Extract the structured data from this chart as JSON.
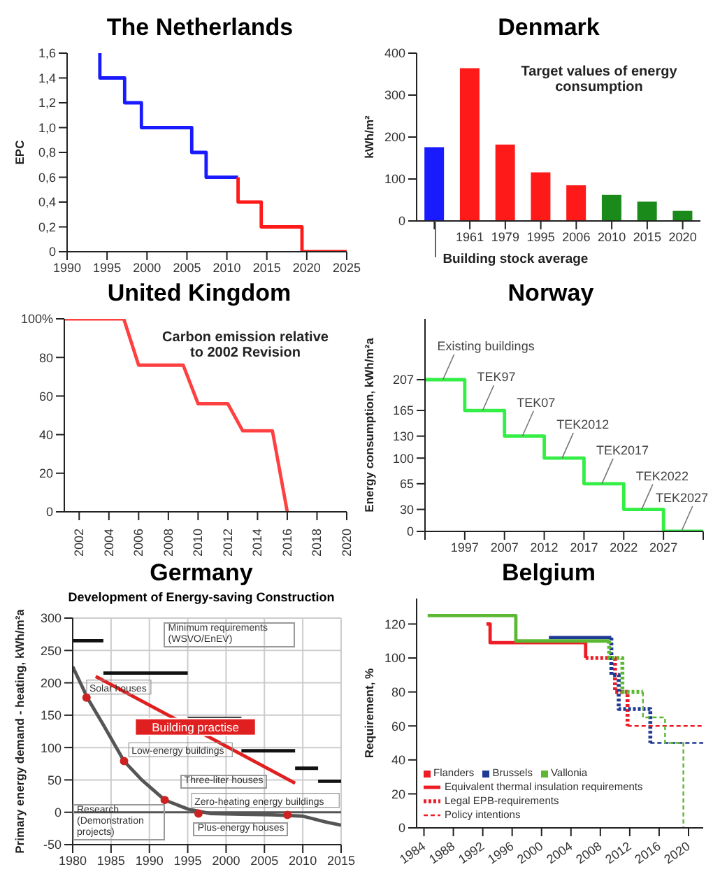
{
  "chart_data": [
    {
      "type": "line",
      "title": "The Netherlands",
      "ylabel": "EPC",
      "xlim": [
        1990,
        2025
      ],
      "xticks": [
        1990,
        1995,
        2000,
        2005,
        2010,
        2015,
        2020,
        2025
      ],
      "ylim": [
        0,
        1.6
      ],
      "yticks": [
        0,
        {
          "value": 0.2,
          "label": "0,2"
        },
        {
          "value": 0.4,
          "label": "0,4"
        },
        {
          "value": 0.6,
          "label": "0,6"
        },
        {
          "value": 0.8,
          "label": "0,8"
        },
        {
          "value": 1.0,
          "label": "1,0"
        },
        {
          "value": 1.2,
          "label": "1,2"
        },
        {
          "value": 1.4,
          "label": "1,4"
        },
        {
          "value": 1.6,
          "label": "1,6"
        }
      ],
      "series": [
        {
          "color": "#1a1aff",
          "x": [
            1994.1,
            1994.1,
            1997.2,
            1997.2,
            1999.3,
            1999.3,
            2005.6,
            2005.6,
            2007.4,
            2007.4,
            2011.4
          ],
          "values": [
            1.6,
            1.4,
            1.4,
            1.2,
            1.2,
            1.0,
            1.0,
            0.8,
            0.8,
            0.6,
            0.6
          ]
        },
        {
          "color": "#ff1a1a",
          "x": [
            2011.4,
            2011.4,
            2014.3,
            2014.3,
            2019.4,
            2019.4,
            2025
          ],
          "values": [
            0.6,
            0.4,
            0.4,
            0.2,
            0.2,
            0,
            0
          ]
        }
      ]
    },
    {
      "type": "bar",
      "title": "Denmark",
      "ylabel": "kWh/m²",
      "categories": [
        null,
        "1961",
        "1979",
        "1995",
        "2006",
        "2010",
        "2015",
        "2020"
      ],
      "values": [
        176,
        364,
        182,
        116,
        85,
        62,
        46,
        24
      ],
      "colors": [
        "#1a1aff",
        "#ff1a1a",
        "#ff1a1a",
        "#ff1a1a",
        "#ff1a1a",
        "#1a8a1a",
        "#1a8a1a",
        "#1a8a1a"
      ],
      "ylim": [
        0,
        400
      ],
      "yticks": [
        0,
        100,
        200,
        300,
        400
      ],
      "annotations": [
        "Target values of energy consumption",
        "Building stock average"
      ]
    },
    {
      "type": "line",
      "title": "United Kingdom",
      "xlim": [
        2001,
        2020
      ],
      "xticks": [
        2002,
        2004,
        2006,
        2008,
        2010,
        2012,
        2014,
        2016,
        2018,
        2020
      ],
      "ylim": [
        0,
        100
      ],
      "yticks": [
        0,
        20,
        40,
        60,
        80,
        {
          "value": 100,
          "label": "100%"
        }
      ],
      "color": "#ff4040",
      "x": [
        2001,
        2005,
        2006,
        2009,
        2010,
        2012,
        2013,
        2015,
        2016
      ],
      "values": [
        100,
        100,
        76,
        76,
        56,
        56,
        42,
        42,
        0
      ],
      "annotations": [
        "Carbon emission relative to 2002 Revision"
      ]
    },
    {
      "type": "step",
      "title": "Norway",
      "ylabel": "Energy consumption, kWh/m²a",
      "categories": [
        null,
        "1997",
        "2007",
        "2012",
        "2017",
        "2022",
        "2027",
        null
      ],
      "values": [
        207,
        165,
        130,
        100,
        65,
        30,
        0,
        0
      ],
      "color": "#33ee44",
      "ylim": [
        0,
        290
      ],
      "yticks": [
        0,
        30,
        65,
        100,
        130,
        165,
        207
      ],
      "annotations": [
        "Existing buildings",
        "TEK97",
        "TEK07",
        "TEK2012",
        "TEK2017",
        "TEK2022",
        "TEK2027"
      ]
    },
    {
      "type": "line",
      "title": "Germany",
      "subtitle": "Development of Energy-saving Construction",
      "ylabel": "Primary energy demand - heating, kWh/m²a",
      "xlim": [
        1980,
        2015
      ],
      "xticks": [
        1980,
        1985,
        1990,
        1995,
        2000,
        2005,
        2010,
        2015
      ],
      "ylim": [
        -50,
        300
      ],
      "yticks": [
        -50,
        0,
        50,
        100,
        150,
        200,
        250,
        300
      ],
      "grid": true,
      "ref_lines": [
        {
          "axis": "y",
          "value": 0,
          "color": "#555555"
        }
      ],
      "series": [
        {
          "color": "#111111",
          "x": [
            1980,
            1984
          ],
          "values": [
            265,
            265
          ]
        },
        {
          "color": "#111111",
          "x": [
            1984,
            1995
          ],
          "values": [
            215,
            215
          ]
        },
        {
          "color": "#111111",
          "x": [
            1995,
            2002
          ],
          "values": [
            145,
            145
          ]
        },
        {
          "color": "#111111",
          "x": [
            2002,
            2009
          ],
          "values": [
            95,
            95
          ]
        },
        {
          "color": "#111111",
          "x": [
            2009,
            2012
          ],
          "values": [
            68,
            68
          ]
        },
        {
          "color": "#111111",
          "x": [
            2012,
            2015
          ],
          "values": [
            48,
            48
          ]
        },
        {
          "color": "#555555",
          "x": [
            1980,
            1982,
            1984,
            1986.7,
            1989,
            1992,
            1995,
            1998,
            2002,
            2006,
            2010,
            2013,
            2015
          ],
          "values": [
            225,
            175,
            135,
            79,
            50,
            19,
            5,
            -2,
            -3,
            -4,
            -6,
            -15,
            -20
          ]
        },
        {
          "type": "scatter",
          "color": "#cc2222",
          "x": [
            1981.8,
            1986.7,
            1992,
            1996.4,
            2008
          ],
          "values": [
            177,
            79,
            19,
            -2,
            -4
          ]
        },
        {
          "name": "Building practise",
          "color": "#e02020",
          "x": [
            1983,
            2009
          ],
          "values": [
            210,
            45
          ]
        }
      ],
      "annotations": [
        "Minimum requirements (WSVO/EnEV)",
        {
          "text": "Solar houses",
          "x": 1982,
          "y": 187
        },
        {
          "text": "Low-energy buildings",
          "x": 1987.5,
          "y": 90
        },
        "Three-liter houses",
        "Research (Demonstration projects)",
        {
          "text": "Zero-heating energy buildings",
          "x": 1995.7,
          "y": 12
        },
        "Plus-energy houses"
      ]
    },
    {
      "type": "line",
      "title": "Belgium",
      "ylabel": "Requirement, %",
      "xlim": [
        1983,
        2022
      ],
      "xticks": [
        1984,
        1988,
        1992,
        1996,
        2000,
        2004,
        2008,
        2012,
        2016,
        2020
      ],
      "ylim": [
        0,
        135
      ],
      "yticks": [
        0,
        20,
        40,
        60,
        80,
        100,
        120
      ],
      "legend": "bottom left",
      "series": [
        {
          "name": "Flanders",
          "color": "#ee1c25",
          "line_style": "solid",
          "x": [
            1992.5,
            1993,
            1993,
            2006,
            2006
          ],
          "values": [
            120,
            120,
            109,
            109,
            100
          ]
        },
        {
          "name": "Brussels",
          "color": "#1f3a93",
          "line_style": "solid",
          "x": [
            2001,
            2009.5
          ],
          "values": [
            112,
            112
          ]
        },
        {
          "name": "Vallonia",
          "color": "#5cb832",
          "line_style": "solid",
          "x": [
            1984.5,
            1996.5,
            1996.5,
            2009.2
          ],
          "values": [
            125,
            125,
            110,
            110
          ]
        },
        {
          "color": "#ee1c25",
          "line_style": "dotted",
          "x": [
            2006,
            2010,
            2010,
            2011.7,
            2011.7
          ],
          "values": [
            100,
            100,
            80,
            80,
            60
          ]
        },
        {
          "color": "#1f3a93",
          "line_style": "dotted",
          "x": [
            2009.5,
            2009.5,
            2010.5,
            2010.5,
            2014.8,
            2014.8
          ],
          "values": [
            112,
            90,
            90,
            70,
            70,
            50
          ]
        },
        {
          "color": "#5cb832",
          "line_style": "dotted",
          "x": [
            2009.2,
            2009.2,
            2011,
            2011,
            2013.8
          ],
          "values": [
            110,
            100,
            100,
            80,
            80
          ]
        },
        {
          "color": "#ee1c25",
          "line_style": "dashed",
          "x": [
            2011.7,
            2022
          ],
          "values": [
            60,
            60
          ]
        },
        {
          "color": "#1f3a93",
          "line_style": "dashed",
          "x": [
            2014.8,
            2022
          ],
          "values": [
            50,
            50
          ]
        },
        {
          "color": "#5cb832",
          "line_style": "dashed",
          "x": [
            2013.8,
            2013.8,
            2016.8,
            2016.8,
            2019.3,
            2019.3
          ],
          "values": [
            80,
            65,
            65,
            50,
            50,
            0
          ]
        }
      ],
      "annotations": [
        "Equivalent thermal insulation requirements",
        "Legal EPB-requirements",
        "Policy intentions"
      ]
    }
  ]
}
